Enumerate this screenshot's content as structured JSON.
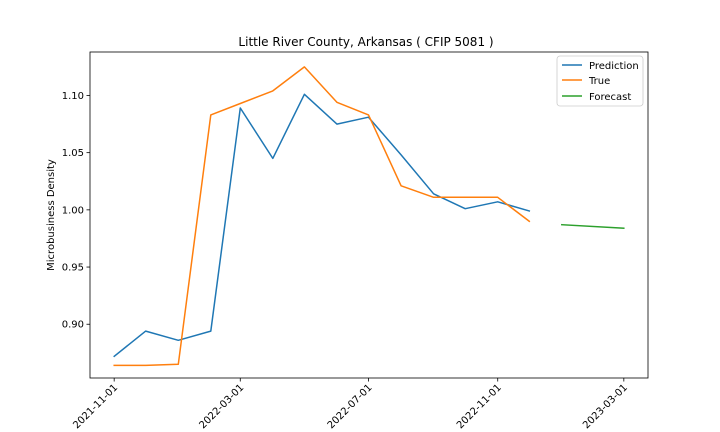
{
  "chart_data": {
    "type": "line",
    "title": "Little River County, Arkansas ( CFIP 5081 )",
    "xlabel": "",
    "ylabel": "Microbusiness Density",
    "x_ticks": [
      "2021-11-01",
      "2022-03-01",
      "2022-07-01",
      "2022-11-01",
      "2023-03-01"
    ],
    "y_ticks": [
      "0.90",
      "0.95",
      "1.00",
      "1.05",
      "1.10"
    ],
    "y_tick_values": [
      0.9,
      0.95,
      1.0,
      1.05,
      1.1
    ],
    "ylim": [
      0.853,
      1.138
    ],
    "xlim": [
      "2021-10-09",
      "2023-03-24"
    ],
    "legend_position": "top-right",
    "grid": false,
    "series": [
      {
        "name": "Prediction",
        "color": "#1f77b4",
        "points": [
          {
            "x": "2021-11-01",
            "y": 0.872
          },
          {
            "x": "2021-12-01",
            "y": 0.894
          },
          {
            "x": "2022-01-01",
            "y": 0.886
          },
          {
            "x": "2022-02-01",
            "y": 0.894
          },
          {
            "x": "2022-03-01",
            "y": 1.089
          },
          {
            "x": "2022-04-01",
            "y": 1.045
          },
          {
            "x": "2022-05-01",
            "y": 1.101
          },
          {
            "x": "2022-06-01",
            "y": 1.075
          },
          {
            "x": "2022-07-01",
            "y": 1.081
          },
          {
            "x": "2022-08-01",
            "y": 1.048
          },
          {
            "x": "2022-09-01",
            "y": 1.014
          },
          {
            "x": "2022-10-01",
            "y": 1.001
          },
          {
            "x": "2022-11-01",
            "y": 1.007
          },
          {
            "x": "2022-12-01",
            "y": 0.999
          }
        ]
      },
      {
        "name": "True",
        "color": "#ff7f0e",
        "points": [
          {
            "x": "2021-11-01",
            "y": 0.864
          },
          {
            "x": "2021-12-01",
            "y": 0.864
          },
          {
            "x": "2022-01-01",
            "y": 0.865
          },
          {
            "x": "2022-02-01",
            "y": 1.083
          },
          {
            "x": "2022-03-01",
            "y": 1.093
          },
          {
            "x": "2022-04-01",
            "y": 1.104
          },
          {
            "x": "2022-05-01",
            "y": 1.125
          },
          {
            "x": "2022-06-01",
            "y": 1.094
          },
          {
            "x": "2022-07-01",
            "y": 1.083
          },
          {
            "x": "2022-08-01",
            "y": 1.021
          },
          {
            "x": "2022-09-01",
            "y": 1.011
          },
          {
            "x": "2022-10-01",
            "y": 1.011
          },
          {
            "x": "2022-11-01",
            "y": 1.011
          },
          {
            "x": "2022-12-01",
            "y": 0.99
          }
        ]
      },
      {
        "name": "Forecast",
        "color": "#2ca02c",
        "points": [
          {
            "x": "2023-01-01",
            "y": 0.987
          },
          {
            "x": "2023-03-01",
            "y": 0.984
          }
        ]
      }
    ]
  }
}
